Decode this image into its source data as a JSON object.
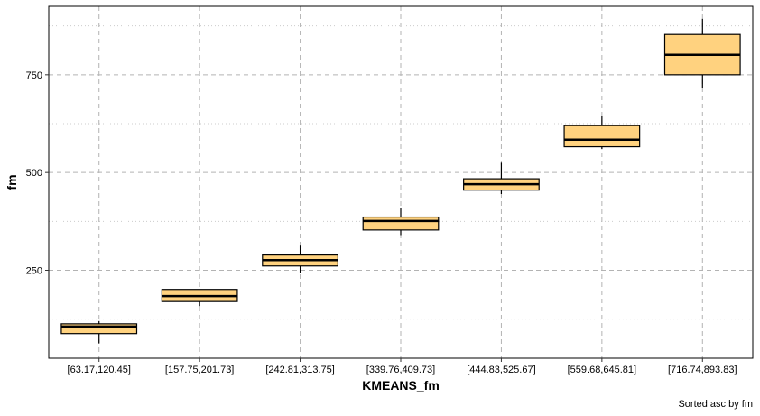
{
  "chart_data": {
    "type": "boxplot",
    "xlabel": "KMEANS_fm",
    "ylabel": "fm",
    "caption": "Sorted asc by  fm",
    "ylim": [
      25,
      925
    ],
    "y_major_ticks": [
      250,
      500,
      750
    ],
    "y_minor_gridlines": [
      125,
      375,
      625,
      875
    ],
    "grid": true,
    "box_fill": "#FFD27F",
    "box_stroke": "#000000",
    "categories": [
      "[63.17,120.45]",
      "[157.75,201.73]",
      "[242.81,313.75]",
      "[339.76,409.73]",
      "[444.83,525.67]",
      "[559.68,645.81]",
      "[716.74,893.83]"
    ],
    "boxes": [
      {
        "min": 63,
        "q1": 88,
        "median": 106,
        "q3": 113,
        "max": 120
      },
      {
        "min": 158,
        "q1": 170,
        "median": 184,
        "q3": 201,
        "max": 201
      },
      {
        "min": 243,
        "q1": 261,
        "median": 276,
        "q3": 289,
        "max": 313
      },
      {
        "min": 340,
        "q1": 353,
        "median": 376,
        "q3": 386,
        "max": 409
      },
      {
        "min": 445,
        "q1": 455,
        "median": 470,
        "q3": 484,
        "max": 525
      },
      {
        "min": 560,
        "q1": 566,
        "median": 584,
        "q3": 620,
        "max": 645
      },
      {
        "min": 717,
        "q1": 750,
        "median": 801,
        "q3": 853,
        "max": 893
      }
    ]
  }
}
